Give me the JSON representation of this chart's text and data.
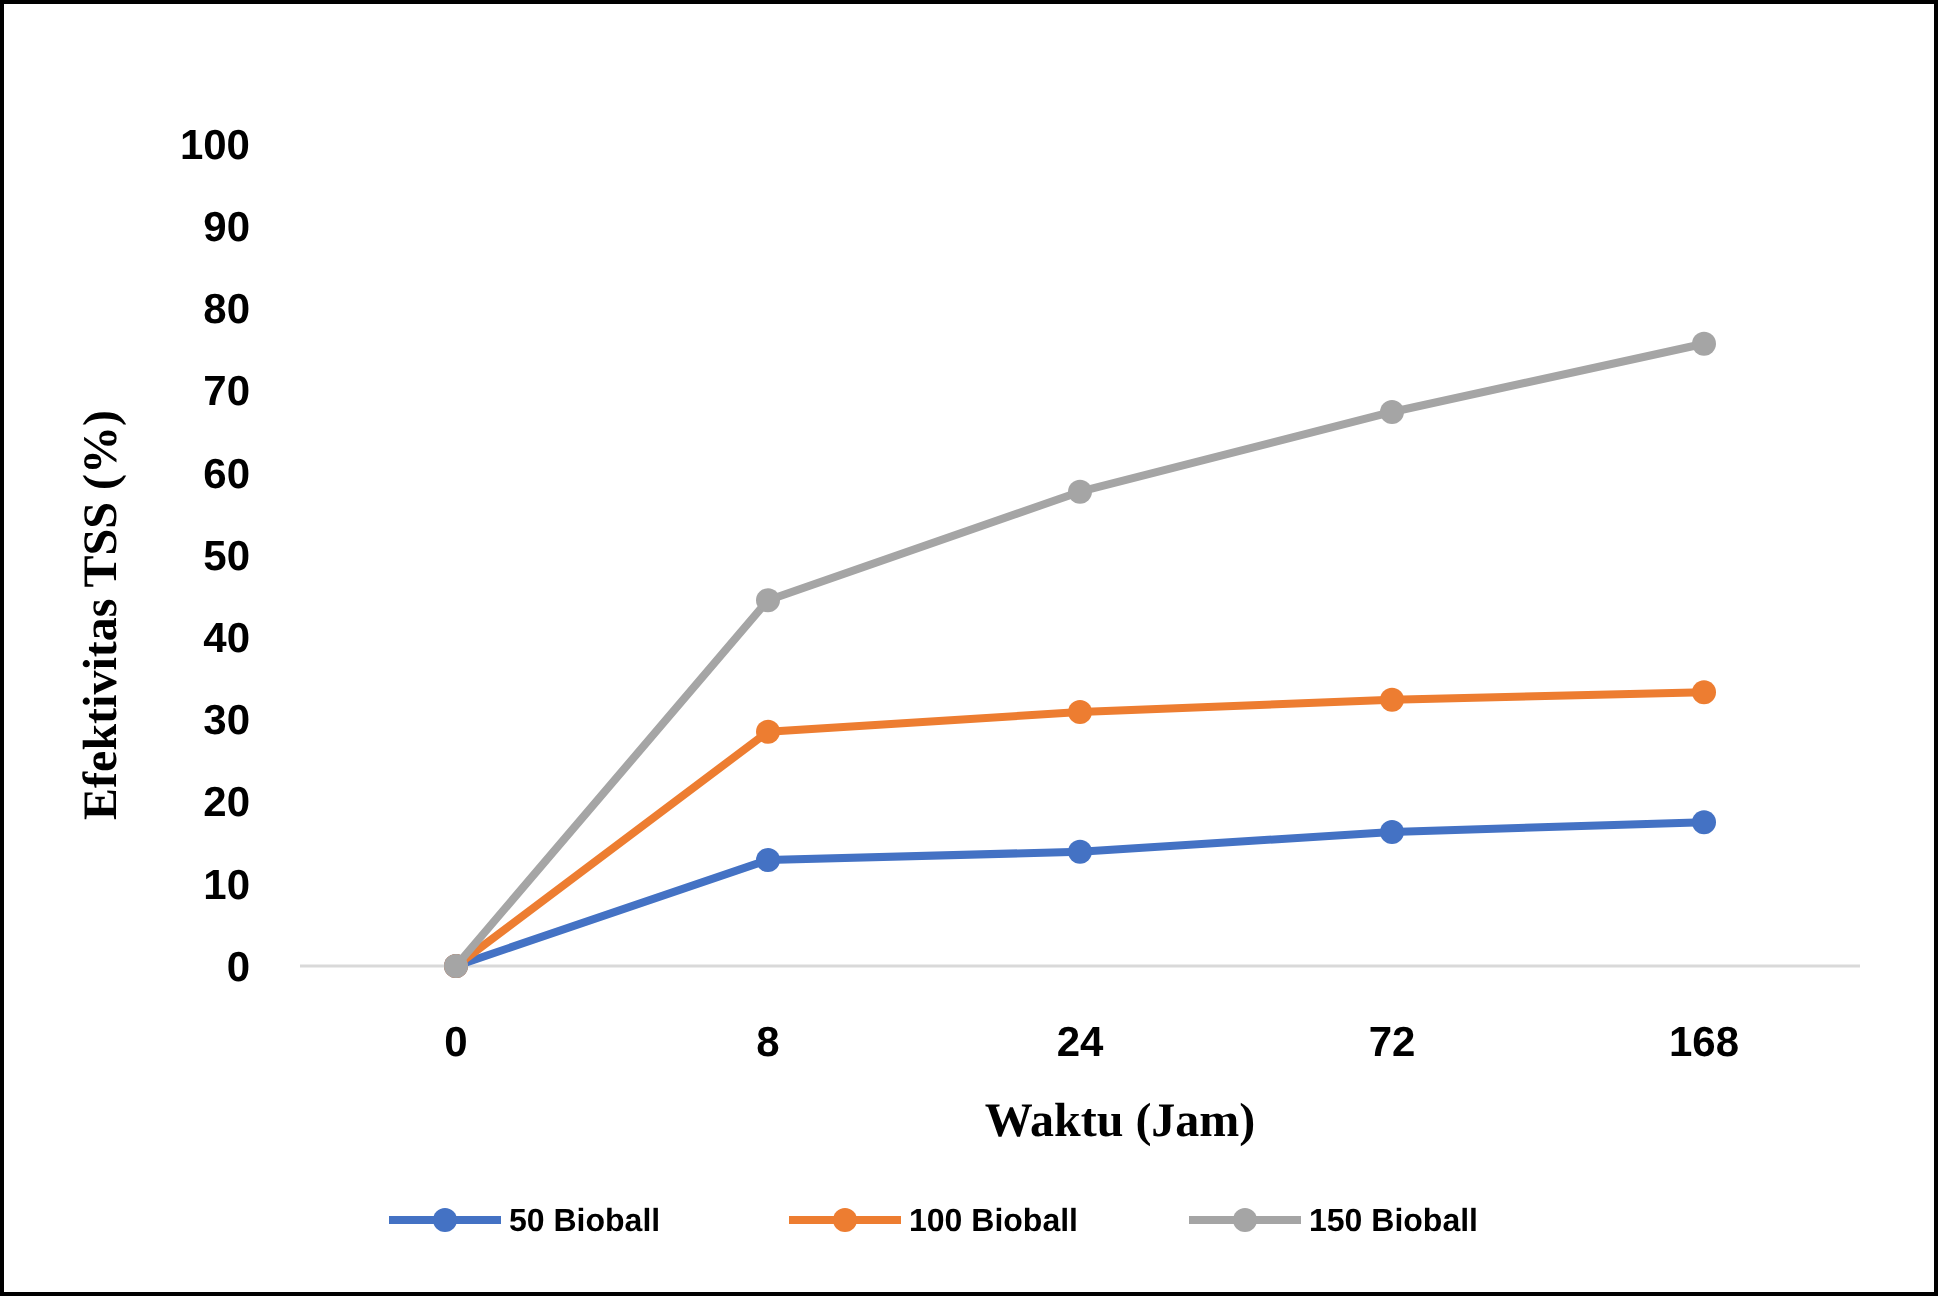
{
  "chart_data": {
    "type": "line",
    "xlabel": "Waktu (Jam)",
    "ylabel": "Efektivitas TSS (%)",
    "categories": [
      "0",
      "8",
      "24",
      "72",
      "168"
    ],
    "ylim": [
      0,
      100
    ],
    "yticks": [
      0,
      10,
      20,
      30,
      40,
      50,
      60,
      70,
      80,
      90,
      100
    ],
    "grid": false,
    "legend": "bottom",
    "marker": "circle",
    "line_style": "solid",
    "series": [
      {
        "name": "50 Bioball",
        "color": "#4472c4",
        "values": [
          0,
          12.9,
          13.9,
          16.3,
          17.5
        ]
      },
      {
        "name": "100 Bioball",
        "color": "#ed7d31",
        "values": [
          0,
          28.5,
          30.9,
          32.4,
          33.3
        ]
      },
      {
        "name": "150 Bioball",
        "color": "#a5a5a5",
        "values": [
          0,
          44.5,
          57.7,
          67.4,
          75.7
        ]
      }
    ]
  }
}
